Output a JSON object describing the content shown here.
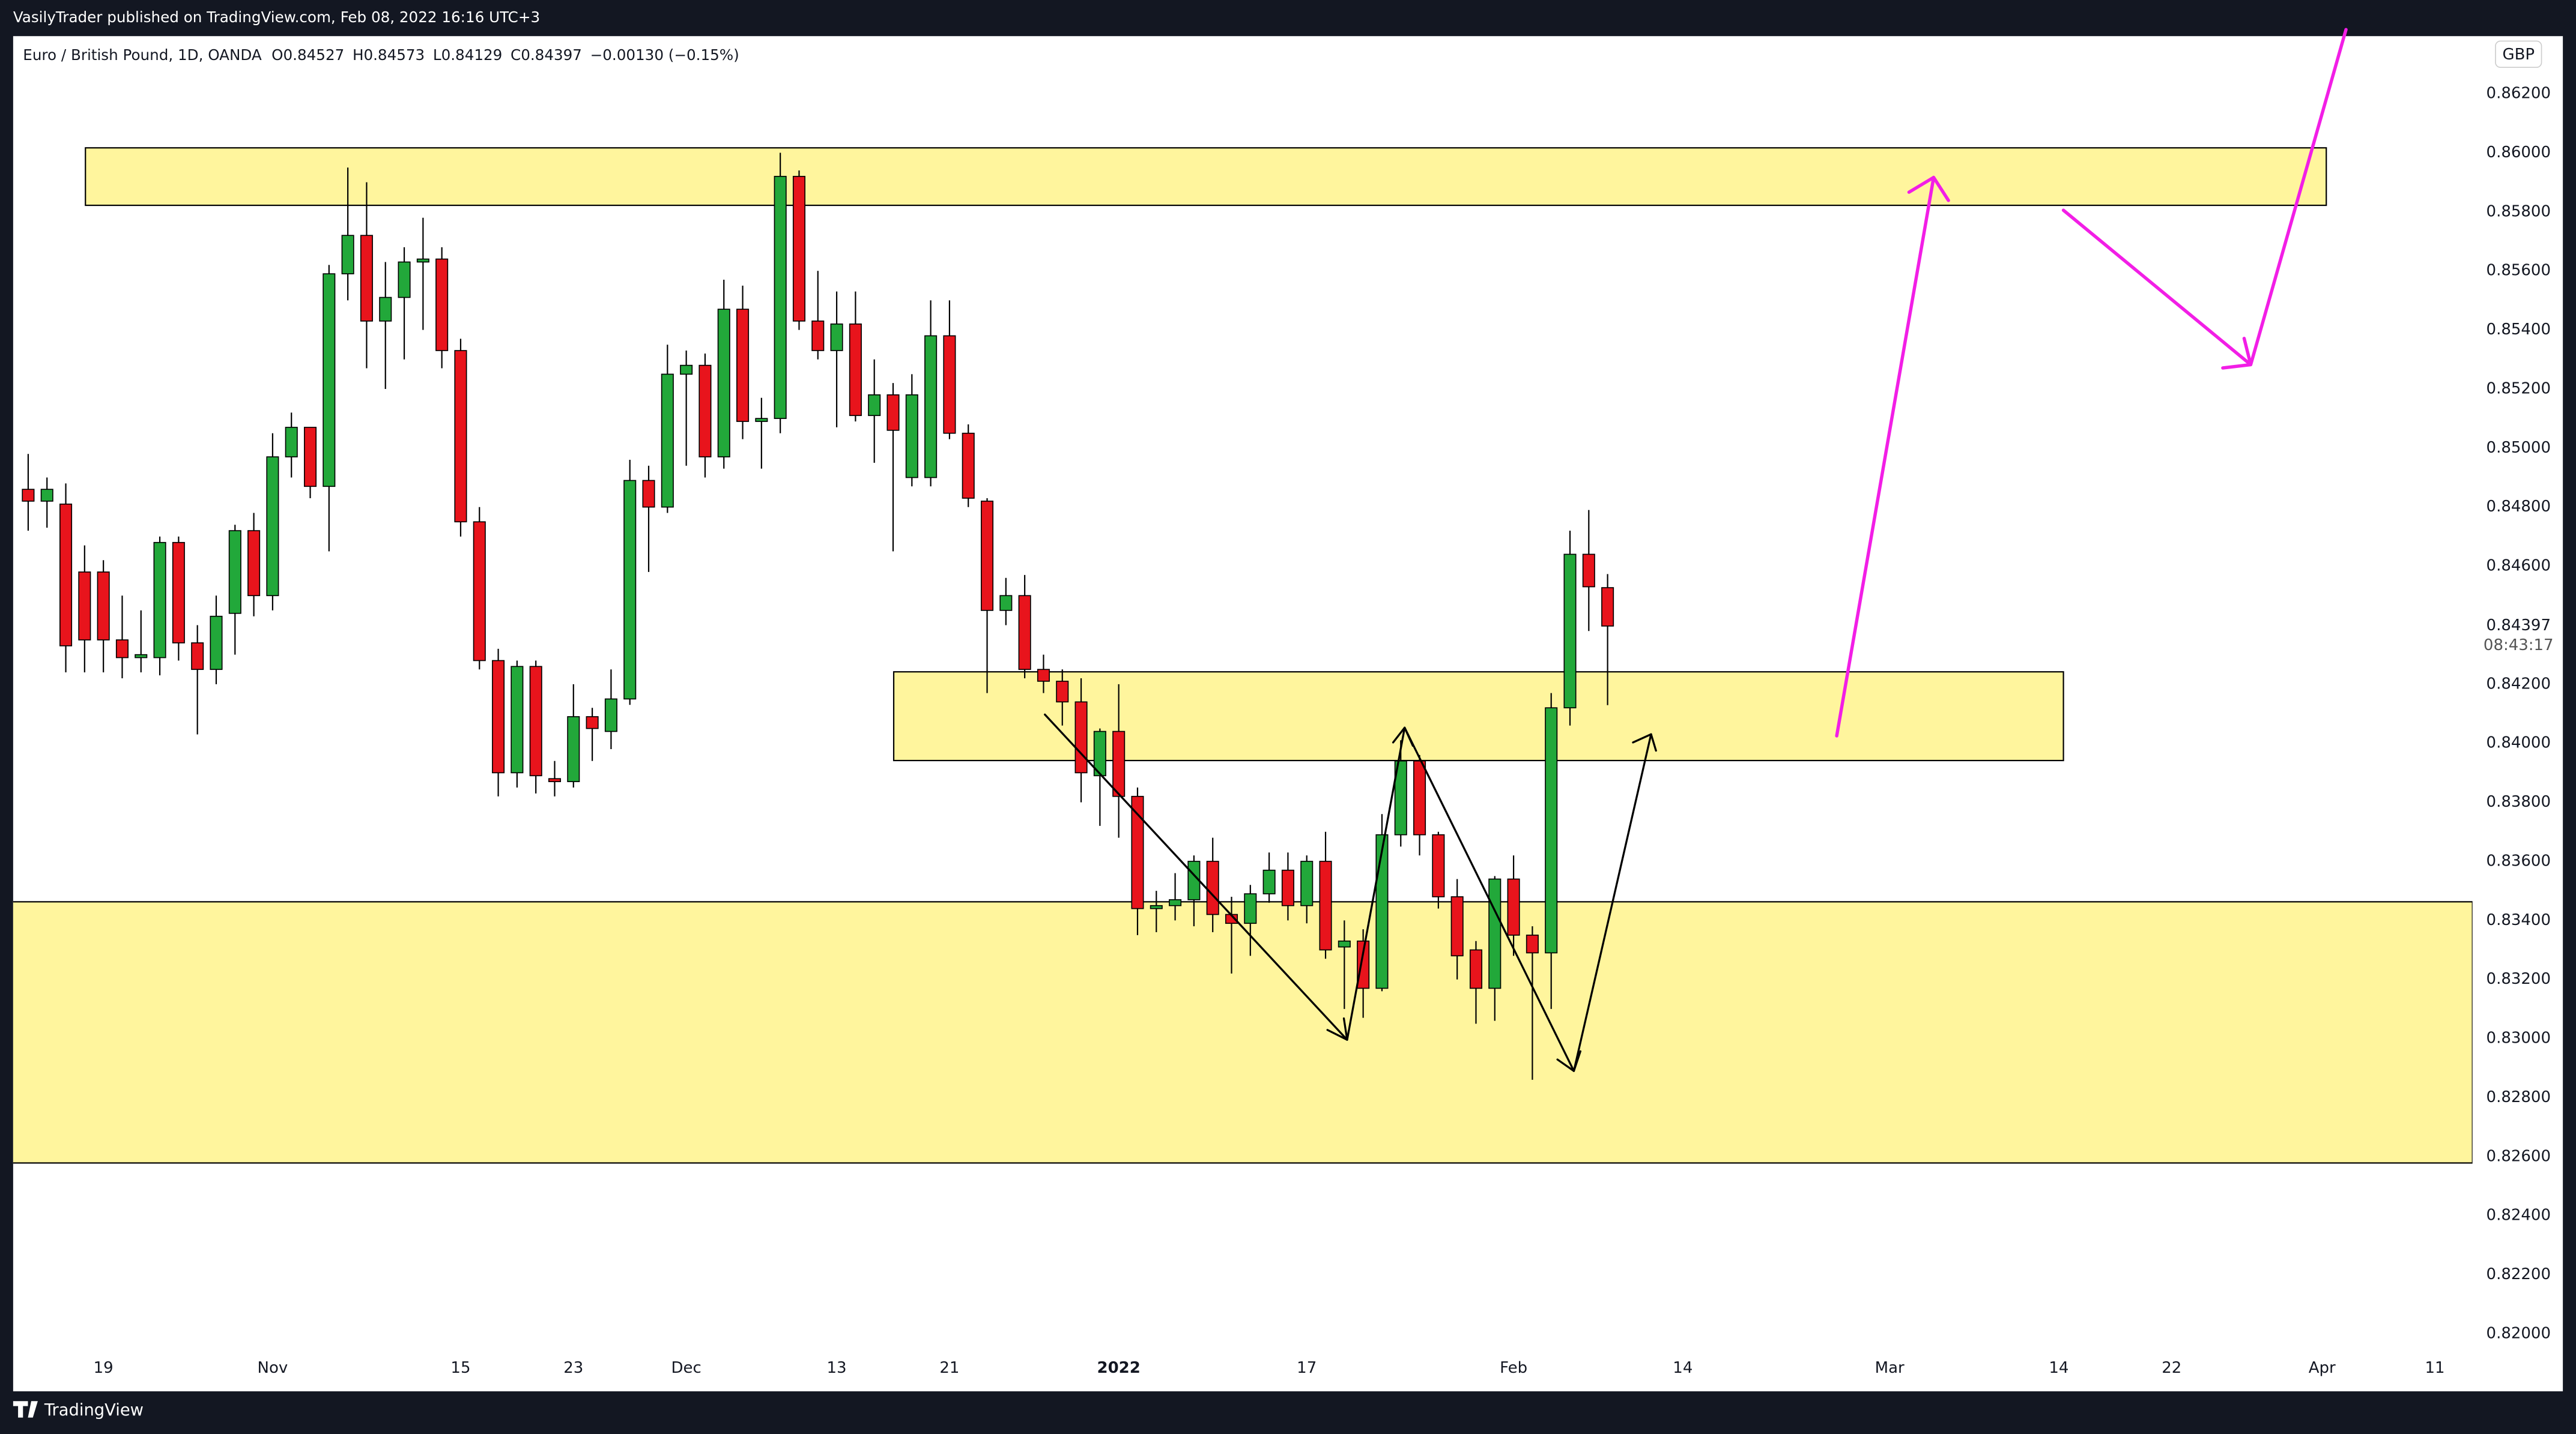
{
  "chart_data": {
    "type": "candlestick",
    "published": "VasilyTrader published on TradingView.com, Feb 08, 2022 16:16 UTC+3",
    "title": "Euro / British Pound, 1D, OANDA",
    "ohlc_header": [
      "O0.84527",
      "H0.84573",
      "L0.84129",
      "C0.84397",
      "−0.00130 (−0.15%)"
    ],
    "currency": "GBP",
    "last_price_label": "0.84397",
    "countdown": "08:43:17",
    "brand": "TradingView",
    "up_color": "#22a83a",
    "down_color": "#e8141c",
    "open": [
      0.8486,
      0.8482,
      0.8481,
      0.8458,
      0.8458,
      0.8435,
      0.8429,
      0.8429,
      0.8468,
      0.8434,
      0.8425,
      0.8444,
      0.8472,
      0.845,
      0.8497,
      0.8507,
      0.8487,
      0.8559,
      0.8572,
      0.8543,
      0.8551,
      0.8563,
      0.8564,
      0.8533,
      0.8475,
      0.8428,
      0.839,
      0.8426,
      0.8388,
      0.8387,
      0.8409,
      0.8404,
      0.8415,
      0.8489,
      0.848,
      0.8525,
      0.8528,
      0.8497,
      0.8547,
      0.8509,
      0.851,
      0.8592,
      0.8543,
      0.8533,
      0.8542,
      0.8511,
      0.8518,
      0.849,
      0.849,
      0.8538,
      0.8505,
      0.8482,
      0.8445,
      0.845,
      0.8425,
      0.8421,
      0.8414,
      0.8389,
      0.8404,
      0.8382,
      0.8344,
      0.8345,
      0.8347,
      0.836,
      0.8342,
      0.8339,
      0.8349,
      0.8357,
      0.8345,
      0.836,
      0.8331,
      0.8333,
      0.8317,
      0.8369,
      0.8394,
      0.8369,
      0.8348,
      0.833,
      0.8317,
      0.8354,
      0.8335,
      0.8329,
      0.8412,
      0.8464,
      0.84527
    ],
    "high": [
      0.8498,
      0.849,
      0.8488,
      0.8467,
      0.8462,
      0.845,
      0.8445,
      0.847,
      0.847,
      0.844,
      0.845,
      0.8474,
      0.8478,
      0.8505,
      0.8512,
      0.8507,
      0.8562,
      0.8595,
      0.859,
      0.8563,
      0.8568,
      0.8578,
      0.8568,
      0.8537,
      0.848,
      0.8432,
      0.8428,
      0.8428,
      0.8394,
      0.842,
      0.8412,
      0.8425,
      0.8496,
      0.8494,
      0.8535,
      0.8533,
      0.8532,
      0.8557,
      0.8555,
      0.8517,
      0.86,
      0.8594,
      0.856,
      0.8553,
      0.8553,
      0.853,
      0.8522,
      0.8525,
      0.855,
      0.855,
      0.8508,
      0.8483,
      0.8456,
      0.8457,
      0.843,
      0.8425,
      0.8422,
      0.8405,
      0.842,
      0.8385,
      0.835,
      0.8356,
      0.8362,
      0.8368,
      0.8348,
      0.8352,
      0.8363,
      0.8363,
      0.8362,
      0.837,
      0.834,
      0.8337,
      0.8376,
      0.8401,
      0.8396,
      0.837,
      0.8354,
      0.8333,
      0.8355,
      0.8362,
      0.8338,
      0.8417,
      0.8472,
      0.8479,
      0.84573
    ],
    "low": [
      0.8472,
      0.8473,
      0.8424,
      0.8424,
      0.8424,
      0.8422,
      0.8424,
      0.8423,
      0.8428,
      0.8403,
      0.842,
      0.843,
      0.8443,
      0.8445,
      0.849,
      0.8483,
      0.8465,
      0.855,
      0.8527,
      0.852,
      0.853,
      0.854,
      0.8527,
      0.847,
      0.8425,
      0.8382,
      0.8385,
      0.8383,
      0.8382,
      0.8385,
      0.8394,
      0.8398,
      0.8413,
      0.8458,
      0.8478,
      0.8494,
      0.849,
      0.8493,
      0.8503,
      0.8493,
      0.8505,
      0.854,
      0.853,
      0.8507,
      0.8509,
      0.8495,
      0.8465,
      0.8487,
      0.8487,
      0.8503,
      0.848,
      0.8417,
      0.844,
      0.8422,
      0.8417,
      0.8406,
      0.838,
      0.8372,
      0.8368,
      0.8335,
      0.8336,
      0.834,
      0.8338,
      0.8336,
      0.8322,
      0.8328,
      0.8346,
      0.834,
      0.8339,
      0.8327,
      0.831,
      0.8307,
      0.8316,
      0.8365,
      0.8362,
      0.8344,
      0.832,
      0.8305,
      0.8306,
      0.8328,
      0.8286,
      0.831,
      0.8406,
      0.8438,
      0.84129
    ],
    "close": [
      0.8482,
      0.8486,
      0.8433,
      0.8435,
      0.8435,
      0.8429,
      0.843,
      0.8468,
      0.8434,
      0.8425,
      0.8443,
      0.8472,
      0.845,
      0.8497,
      0.8507,
      0.8487,
      0.8559,
      0.8572,
      0.8543,
      0.8551,
      0.8563,
      0.8564,
      0.8533,
      0.8475,
      0.8428,
      0.839,
      0.8426,
      0.8389,
      0.8387,
      0.8409,
      0.8405,
      0.8415,
      0.8489,
      0.848,
      0.8525,
      0.8528,
      0.8497,
      0.8547,
      0.8509,
      0.851,
      0.8592,
      0.8543,
      0.8533,
      0.8542,
      0.8511,
      0.8518,
      0.8506,
      0.8518,
      0.8538,
      0.8505,
      0.8483,
      0.8445,
      0.845,
      0.8425,
      0.8421,
      0.8414,
      0.839,
      0.8404,
      0.8382,
      0.8344,
      0.8345,
      0.8347,
      0.836,
      0.8342,
      0.8339,
      0.8349,
      0.8357,
      0.8345,
      0.836,
      0.833,
      0.8333,
      0.8317,
      0.8369,
      0.8394,
      0.8369,
      0.8348,
      0.8328,
      0.8317,
      0.8354,
      0.8335,
      0.8329,
      0.8412,
      0.8464,
      0.8453,
      0.84397
    ],
    "xlim": [
      -0.8,
      130
    ],
    "xticks": [
      {
        "value": 4,
        "label": "19"
      },
      {
        "value": 13,
        "label": "Nov"
      },
      {
        "value": 23,
        "label": "15"
      },
      {
        "value": 29,
        "label": "23"
      },
      {
        "value": 35,
        "label": "Dec"
      },
      {
        "value": 43,
        "label": "13"
      },
      {
        "value": 49,
        "label": "21"
      },
      {
        "value": 58,
        "label": "2022"
      },
      {
        "value": 68,
        "label": "17"
      },
      {
        "value": 79,
        "label": "Feb"
      },
      {
        "value": 88,
        "label": "14"
      },
      {
        "value": 99,
        "label": "Mar"
      },
      {
        "value": 108,
        "label": "14"
      },
      {
        "value": 114,
        "label": "22"
      },
      {
        "value": 122,
        "label": "Apr"
      },
      {
        "value": 128,
        "label": "11"
      }
    ],
    "ylim": [
      0.81805,
      0.86395
    ],
    "yticks": [
      {
        "value": 0.862,
        "label": "0.86200"
      },
      {
        "value": 0.86,
        "label": "0.86000"
      },
      {
        "value": 0.858,
        "label": "0.85800"
      },
      {
        "value": 0.856,
        "label": "0.85600"
      },
      {
        "value": 0.854,
        "label": "0.85400"
      },
      {
        "value": 0.852,
        "label": "0.85200"
      },
      {
        "value": 0.85,
        "label": "0.85000"
      },
      {
        "value": 0.848,
        "label": "0.84800"
      },
      {
        "value": 0.846,
        "label": "0.84600"
      },
      {
        "value": 0.842,
        "label": "0.84200"
      },
      {
        "value": 0.84,
        "label": "0.84000"
      },
      {
        "value": 0.838,
        "label": "0.83800"
      },
      {
        "value": 0.836,
        "label": "0.83600"
      },
      {
        "value": 0.834,
        "label": "0.83400"
      },
      {
        "value": 0.832,
        "label": "0.83200"
      },
      {
        "value": 0.83,
        "label": "0.83000"
      },
      {
        "value": 0.828,
        "label": "0.82800"
      },
      {
        "value": 0.826,
        "label": "0.82600"
      },
      {
        "value": 0.824,
        "label": "0.82400"
      },
      {
        "value": 0.822,
        "label": "0.82200"
      },
      {
        "value": 0.82,
        "label": "0.82000"
      }
    ],
    "grid": false
  }
}
